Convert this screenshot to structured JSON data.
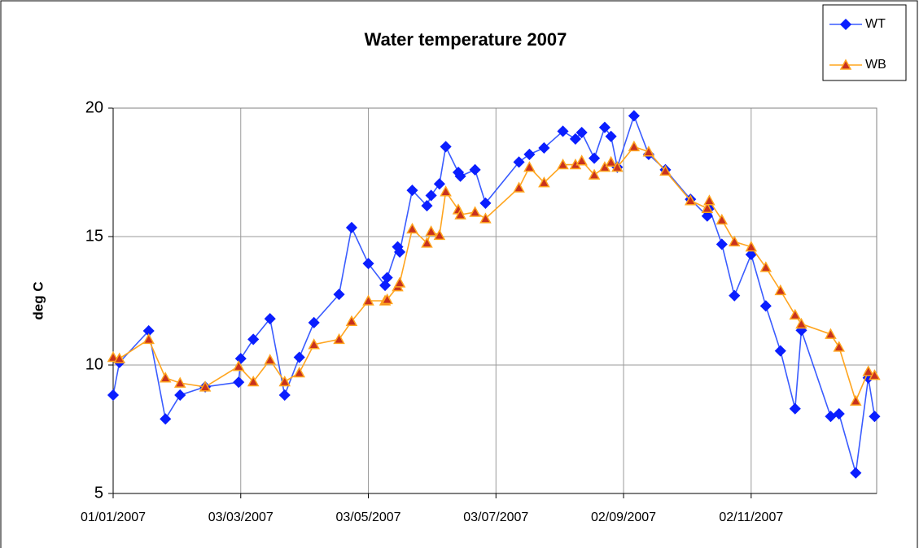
{
  "chart_data": {
    "type": "line",
    "title": "Water temperature 2007",
    "y_label": "deg C",
    "xlim": [
      "01/01/2007",
      "01/01/2008"
    ],
    "xticks": [
      "01/01/2007",
      "03/03/2007",
      "03/05/2007",
      "03/07/2007",
      "02/09/2007",
      "02/11/2007"
    ],
    "ylim": [
      5,
      20
    ],
    "yticks": [
      5,
      10,
      15,
      20
    ],
    "grid": true,
    "legend": "top-right",
    "series": [
      {
        "name": "WT",
        "color": "#3a5cff",
        "marker": "diamond",
        "marker_color": "#0a1eff",
        "x": [
          "01/01/2007",
          "04/01/2007",
          "18/01/2007",
          "26/01/2007",
          "02/02/2007",
          "14/02/2007",
          "02/03/2007",
          "03/03/2007",
          "09/03/2007",
          "17/03/2007",
          "24/03/2007",
          "31/03/2007",
          "07/04/2007",
          "19/04/2007",
          "25/04/2007",
          "03/05/2007",
          "11/05/2007",
          "12/05/2007",
          "17/05/2007",
          "18/05/2007",
          "24/05/2007",
          "31/05/2007",
          "02/06/2007",
          "06/06/2007",
          "09/06/2007",
          "15/06/2007",
          "16/06/2007",
          "23/06/2007",
          "28/06/2007",
          "14/07/2007",
          "19/07/2007",
          "26/07/2007",
          "04/08/2007",
          "10/08/2007",
          "13/08/2007",
          "19/08/2007",
          "24/08/2007",
          "27/08/2007",
          "30/08/2007",
          "07/09/2007",
          "14/09/2007",
          "22/09/2007",
          "04/10/2007",
          "12/10/2007",
          "13/10/2007",
          "19/10/2007",
          "25/10/2007",
          "02/11/2007",
          "09/11/2007",
          "16/11/2007",
          "23/11/2007",
          "26/11/2007",
          "10/12/2007",
          "14/12/2007",
          "22/12/2007",
          "28/12/2007",
          "31/12/2007"
        ],
        "values": [
          8.83,
          10.1,
          11.33,
          7.9,
          8.83,
          9.15,
          9.33,
          10.25,
          11.0,
          11.8,
          8.83,
          10.3,
          11.65,
          12.75,
          15.35,
          13.95,
          13.1,
          13.4,
          14.6,
          14.4,
          16.8,
          16.2,
          16.6,
          17.05,
          18.5,
          17.5,
          17.35,
          17.6,
          16.3,
          17.9,
          18.2,
          18.45,
          19.1,
          18.8,
          19.05,
          18.05,
          19.25,
          18.9,
          17.7,
          19.7,
          18.2,
          17.6,
          16.45,
          15.8,
          16.1,
          14.7,
          12.7,
          14.3,
          12.3,
          10.55,
          8.3,
          11.35,
          8.0,
          8.1,
          5.8,
          9.5,
          8.0
        ]
      },
      {
        "name": "WB",
        "color": "#ffa51f",
        "marker": "triangle",
        "marker_color": "#c8321e",
        "x": [
          "01/01/2007",
          "04/01/2007",
          "18/01/2007",
          "26/01/2007",
          "02/02/2007",
          "14/02/2007",
          "02/03/2007",
          "09/03/2007",
          "17/03/2007",
          "24/03/2007",
          "31/03/2007",
          "07/04/2007",
          "19/04/2007",
          "25/04/2007",
          "03/05/2007",
          "11/05/2007",
          "12/05/2007",
          "17/05/2007",
          "18/05/2007",
          "24/05/2007",
          "31/05/2007",
          "02/06/2007",
          "06/06/2007",
          "09/06/2007",
          "15/06/2007",
          "16/06/2007",
          "23/06/2007",
          "28/06/2007",
          "14/07/2007",
          "19/07/2007",
          "26/07/2007",
          "04/08/2007",
          "10/08/2007",
          "13/08/2007",
          "19/08/2007",
          "24/08/2007",
          "27/08/2007",
          "30/08/2007",
          "07/09/2007",
          "14/09/2007",
          "22/09/2007",
          "04/10/2007",
          "12/10/2007",
          "13/10/2007",
          "19/10/2007",
          "25/10/2007",
          "02/11/2007",
          "09/11/2007",
          "16/11/2007",
          "23/11/2007",
          "26/11/2007",
          "10/12/2007",
          "14/12/2007",
          "22/12/2007",
          "28/12/2007",
          "31/12/2007"
        ],
        "values": [
          10.3,
          10.25,
          11.0,
          9.5,
          9.3,
          9.15,
          9.95,
          9.35,
          10.2,
          9.35,
          9.7,
          10.8,
          11.0,
          11.7,
          12.5,
          12.5,
          12.55,
          13.05,
          13.2,
          15.3,
          14.75,
          15.2,
          15.05,
          16.75,
          16.05,
          15.85,
          15.95,
          15.7,
          16.9,
          17.7,
          17.1,
          17.8,
          17.8,
          17.95,
          17.4,
          17.7,
          17.9,
          17.7,
          18.5,
          18.3,
          17.55,
          16.4,
          16.1,
          16.4,
          15.65,
          14.8,
          14.6,
          13.8,
          12.9,
          11.95,
          11.6,
          11.2,
          10.7,
          8.6,
          9.75,
          9.6
        ]
      }
    ]
  }
}
